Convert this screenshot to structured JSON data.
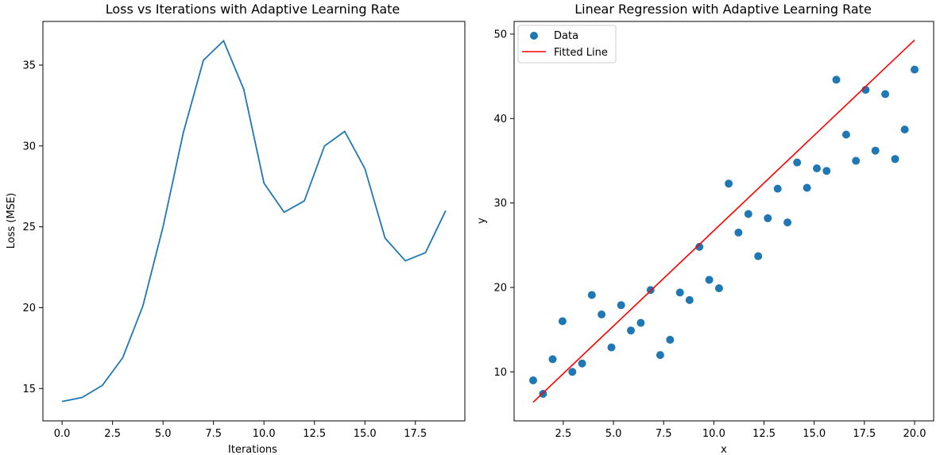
{
  "chart_data": [
    {
      "type": "line",
      "title": "Loss vs Iterations with Adaptive Learning Rate",
      "xlabel": "Iterations",
      "ylabel": "Loss (MSE)",
      "xlim": [
        -0.95,
        19.95
      ],
      "ylim": [
        13.0,
        37.7
      ],
      "xticks": [
        0.0,
        2.5,
        5.0,
        7.5,
        10.0,
        12.5,
        15.0,
        17.5
      ],
      "xtick_labels": [
        "0.0",
        "2.5",
        "5.0",
        "7.5",
        "10.0",
        "12.5",
        "15.0",
        "17.5"
      ],
      "yticks": [
        15,
        20,
        25,
        30,
        35
      ],
      "ytick_labels": [
        "15",
        "20",
        "25",
        "30",
        "35"
      ],
      "line_color": "#1f77b4",
      "series": [
        {
          "name": "Loss",
          "x": [
            0,
            1,
            2,
            3,
            4,
            5,
            6,
            7,
            8,
            9,
            10,
            11,
            12,
            13,
            14,
            15,
            16,
            17,
            18,
            19
          ],
          "y": [
            14.2,
            14.45,
            15.2,
            16.9,
            20.1,
            25.0,
            30.8,
            35.3,
            36.5,
            33.5,
            27.7,
            25.9,
            26.6,
            30.0,
            30.9,
            28.6,
            24.3,
            22.9,
            23.4,
            26.0
          ]
        }
      ]
    },
    {
      "type": "scatter",
      "title": "Linear Regression with Adaptive Learning Rate",
      "xlabel": "x",
      "ylabel": "y",
      "xlim": [
        0.05,
        20.95
      ],
      "ylim": [
        4.2,
        51.5
      ],
      "xticks": [
        2.5,
        5.0,
        7.5,
        10.0,
        12.5,
        15.0,
        17.5,
        20.0
      ],
      "xtick_labels": [
        "2.5",
        "5.0",
        "7.5",
        "10.0",
        "12.5",
        "15.0",
        "17.5",
        "20.0"
      ],
      "yticks": [
        10,
        20,
        30,
        40,
        50
      ],
      "ytick_labels": [
        "10",
        "20",
        "30",
        "40",
        "50"
      ],
      "legend": {
        "position": "top-left",
        "entries": [
          {
            "label": "Data",
            "kind": "marker",
            "color": "#1f77b4"
          },
          {
            "label": "Fitted Line",
            "kind": "line",
            "color": "#ff0000"
          }
        ]
      },
      "series": [
        {
          "name": "Data",
          "color": "#1f77b4",
          "points": [
            [
              1.0,
              9.0
            ],
            [
              1.49,
              7.4
            ],
            [
              1.97,
              11.5
            ],
            [
              2.46,
              16.0
            ],
            [
              2.95,
              10.0
            ],
            [
              3.44,
              11.0
            ],
            [
              3.92,
              19.1
            ],
            [
              4.41,
              16.8
            ],
            [
              4.9,
              12.9
            ],
            [
              5.38,
              17.9
            ],
            [
              5.87,
              14.9
            ],
            [
              6.36,
              15.8
            ],
            [
              6.85,
              19.7
            ],
            [
              7.33,
              12.0
            ],
            [
              7.82,
              13.8
            ],
            [
              8.31,
              19.4
            ],
            [
              8.79,
              18.5
            ],
            [
              9.28,
              24.8
            ],
            [
              9.77,
              20.9
            ],
            [
              10.26,
              19.9
            ],
            [
              10.74,
              32.3
            ],
            [
              11.23,
              26.5
            ],
            [
              11.72,
              28.7
            ],
            [
              12.21,
              23.7
            ],
            [
              12.69,
              28.2
            ],
            [
              13.18,
              31.7
            ],
            [
              13.67,
              27.7
            ],
            [
              14.15,
              34.8
            ],
            [
              14.64,
              31.8
            ],
            [
              15.13,
              34.1
            ],
            [
              15.62,
              33.8
            ],
            [
              16.1,
              44.6
            ],
            [
              16.59,
              38.1
            ],
            [
              17.08,
              35.0
            ],
            [
              17.56,
              43.4
            ],
            [
              18.05,
              36.2
            ],
            [
              18.54,
              42.9
            ],
            [
              19.03,
              35.2
            ],
            [
              19.51,
              38.7
            ],
            [
              20.0,
              45.8
            ]
          ]
        },
        {
          "name": "Fitted Line",
          "color": "#ff0000",
          "x": [
            1.0,
            20.0
          ],
          "y": [
            6.4,
            49.3
          ]
        }
      ]
    }
  ]
}
